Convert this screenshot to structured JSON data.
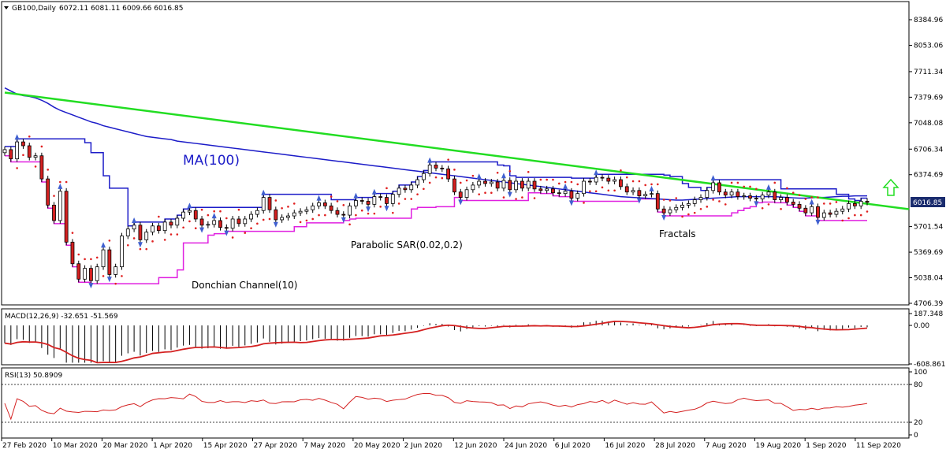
{
  "header": {
    "symbol": "GB100,Daily",
    "ohlc": "6072.11 6081.11 6009.66 6016.85"
  },
  "colors": {
    "ma": "#1c1cc8",
    "trendline": "#22dd22",
    "donchian": "#e020e0",
    "sar": "#e02020",
    "fractal": "#4060d0",
    "bull": "#ffffff",
    "bear": "#d42020",
    "macd_signal": "#d42020",
    "rsi": "#d42020",
    "arrow": "#22dd22",
    "price_tag_bg": "#1a2c6e"
  },
  "annotations": {
    "ma": "MA(100)",
    "sar": "Parabolic SAR(0.02,0.2)",
    "fractals": "Fractals",
    "donchian": "Donchian Channel(10)",
    "up_arrow_icon": "up-arrow-icon"
  },
  "chart_data": [
    {
      "type": "line",
      "title": "GB100,Daily",
      "price_scale": {
        "ticks": [
          "8384.96",
          "8053.06",
          "7711.34",
          "7379.69",
          "7048.08",
          "6706.34",
          "6374.69",
          "6016.85",
          "5701.54",
          "5369.69",
          "5038.04",
          "4706.39"
        ],
        "ylim": [
          4706.39,
          8716.26
        ],
        "current": "6016.85"
      },
      "x_labels": [
        "27 Feb 2020",
        "10 Mar 2020",
        "20 Mar 2020",
        "1 Apr 2020",
        "15 Apr 2020",
        "27 Apr 2020",
        "7 May 2020",
        "20 May 2020",
        "2 Jun 2020",
        "12 Jun 2020",
        "24 Jun 2020",
        "6 Jul 2020",
        "16 Jul 2020",
        "28 Jul 2020",
        "7 Aug 2020",
        "19 Aug 2020",
        "1 Sep 2020",
        "11 Sep 2020"
      ],
      "close": [
        6700,
        6580,
        6800,
        6750,
        6600,
        6620,
        6320,
        5980,
        5780,
        6160,
        5500,
        5220,
        5020,
        5160,
        5000,
        5180,
        5400,
        5080,
        5180,
        5580,
        5670,
        5720,
        5530,
        5630,
        5710,
        5650,
        5760,
        5720,
        5810,
        5890,
        5910,
        5800,
        5720,
        5730,
        5780,
        5690,
        5680,
        5800,
        5740,
        5800,
        5860,
        5910,
        6080,
        5920,
        5790,
        5820,
        5840,
        5880,
        5900,
        5920,
        5970,
        6010,
        5970,
        5910,
        5860,
        5850,
        5970,
        6040,
        6030,
        5990,
        6090,
        6080,
        6000,
        6120,
        6200,
        6180,
        6240,
        6310,
        6390,
        6500,
        6460,
        6450,
        6320,
        6150,
        6080,
        6180,
        6240,
        6290,
        6260,
        6280,
        6200,
        6300,
        6180,
        6290,
        6200,
        6290,
        6190,
        6170,
        6190,
        6140,
        6130,
        6160,
        6070,
        6130,
        6290,
        6280,
        6340,
        6330,
        6290,
        6310,
        6220,
        6150,
        6170,
        6100,
        6120,
        6130,
        5930,
        5880,
        5920,
        5950,
        5980,
        6000,
        6050,
        6080,
        6170,
        6270,
        6150,
        6110,
        6150,
        6090,
        6100,
        6070,
        6060,
        6110,
        6150,
        6050,
        6080,
        6020,
        5990,
        5940,
        5880,
        5960,
        5820,
        5880,
        5860,
        5900,
        5930,
        6000,
        5970,
        6030,
        6016.85
      ],
      "ma100": [
        7500,
        7460,
        7420,
        7400,
        7390,
        7370,
        7340,
        7300,
        7250,
        7210,
        7180,
        7150,
        7120,
        7090,
        7060,
        7040,
        7010,
        6990,
        6970,
        6950,
        6930,
        6910,
        6890,
        6870,
        6860,
        6850,
        6840,
        6830,
        6810,
        6800,
        6790,
        6780,
        6770,
        6760,
        6750,
        6740,
        6730,
        6720,
        6710,
        6700,
        6690,
        6680,
        6670,
        6660,
        6650,
        6640,
        6630,
        6620,
        6610,
        6600,
        6590,
        6580,
        6570,
        6560,
        6550,
        6540,
        6530,
        6520,
        6510,
        6500,
        6490,
        6480,
        6470,
        6460,
        6450,
        6440,
        6430,
        6420,
        6410,
        6400,
        6390,
        6380,
        6370,
        6360,
        6350,
        6340,
        6330,
        6320,
        6310,
        6300,
        6290,
        6280,
        6270,
        6260,
        6250,
        6240,
        6230,
        6220,
        6210,
        6200,
        6190,
        6180,
        6170,
        6160,
        6150,
        6140,
        6130,
        6120,
        6110,
        6100,
        6090,
        6085,
        6080,
        6075,
        6070,
        6065,
        6060,
        6055,
        6050,
        6045,
        6045,
        6050,
        6055,
        6060,
        6065,
        6070,
        6075,
        6080,
        6085,
        6090,
        6090,
        6090,
        6090,
        6090,
        6090,
        6090,
        6085,
        6080,
        6075,
        6070,
        6070,
        6075,
        6080,
        6080,
        6085,
        6090,
        6095,
        6095,
        6100,
        6100,
        6100
      ],
      "trendline": [
        [
          0,
          7440
        ],
        [
          143,
          6050
        ]
      ],
      "macd": {
        "label": "MACD(12,26,9) -32.651 -51.569",
        "ticks": [
          "187.348",
          "0.00",
          "-608.861"
        ]
      },
      "rsi": {
        "label": "RSI(13) 50.8909",
        "ticks": [
          "100",
          "80",
          "20",
          "0"
        ]
      }
    }
  ]
}
